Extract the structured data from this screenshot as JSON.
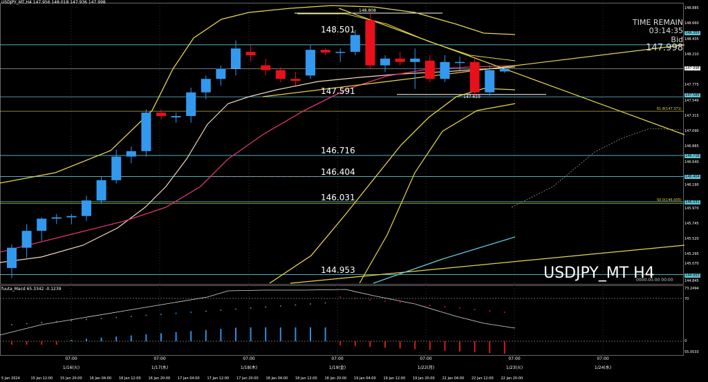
{
  "header": {
    "symbol": "USDJPY_MT,H4",
    "ohlc": "147.956 148.018 147.936 147.998"
  },
  "info": {
    "time_remain_label": "TIME REMAIN",
    "time_remain_value": "03:14:35",
    "bid_label": "Bid",
    "bid_value": "147.998"
  },
  "watermark": "USDJPY_MT H4",
  "level_labels": {
    "top_line": "148.808",
    "l1": "148.501",
    "l2": "147.591",
    "l3": "147.619",
    "l4": "146.716",
    "l5": "146.404",
    "l6": "146.031",
    "l7": "144.953"
  },
  "fib_labels": {
    "f618": "61.8(147.371)",
    "f500": "50.0(146.005)"
  },
  "price_axis": [
    "148.885",
    "148.660",
    "148.435",
    "148.210",
    "147.775",
    "147.540",
    "147.315",
    "147.090",
    "146.865",
    "146.640",
    "146.415",
    "146.190",
    "145.970",
    "145.745",
    "145.520",
    "145.295",
    "145.070",
    "144.845"
  ],
  "price_tags": {
    "p148355": "148.355",
    "current": "147.998",
    "p147585": "147.585",
    "p146716": "146.716",
    "p146404": "146.404",
    "p146031": "146.031",
    "p144953": "144.953"
  },
  "macd": {
    "header": "fuuta_Macd 65.3342 -0.1239",
    "axis": [
      "73.2494",
      "70",
      "0",
      "55.0533"
    ],
    "zero_readout": "0000.00.00 00:00"
  },
  "time_ticks": [
    "07:00",
    "07:00",
    "07:00",
    "07:00",
    "07:00",
    "07:00",
    "07:00",
    "07:00"
  ],
  "date_ticks": [
    "1/16(火)",
    "1/17(水)",
    "1/18(木)",
    "1/19(金)",
    "1/22(月)",
    "1/23(火)",
    "1/24(水)"
  ],
  "x_dates": [
    "5 Jan 2024",
    "15 Jan 12:00",
    "15 Jan 20:00",
    "16 Jan 04:00",
    "16 Jan 12:00",
    "16 Jan 20:00",
    "17 Jan 04:00",
    "17 Jan 12:00",
    "17 Jan 20:00",
    "18 Jan 04:00",
    "18 Jan 12:00",
    "18 Jan 20:00",
    "19 Jan 04:00",
    "19 Jan 12:00",
    "19 Jan 20:00",
    "22 Jan 04:00",
    "22 Jan 12:00",
    "22 Jan 20:00"
  ],
  "candles": [
    [
      145.05,
      145.4,
      144.9,
      145.35
    ],
    [
      145.35,
      145.7,
      145.2,
      145.6
    ],
    [
      145.6,
      145.8,
      145.45,
      145.78
    ],
    [
      145.78,
      145.85,
      145.7,
      145.8
    ],
    [
      145.8,
      145.85,
      145.7,
      145.82
    ],
    [
      145.82,
      146.12,
      145.75,
      146.05
    ],
    [
      146.05,
      146.4,
      146.0,
      146.35
    ],
    [
      146.35,
      146.8,
      146.3,
      146.7
    ],
    [
      146.7,
      146.85,
      146.6,
      146.78
    ],
    [
      146.78,
      147.4,
      146.7,
      147.35
    ],
    [
      147.35,
      147.4,
      147.25,
      147.3
    ],
    [
      147.28,
      147.35,
      147.2,
      147.3
    ],
    [
      147.3,
      147.72,
      147.2,
      147.65
    ],
    [
      147.65,
      147.9,
      147.55,
      147.85
    ],
    [
      147.85,
      148.05,
      147.75,
      148.0
    ],
    [
      148.0,
      148.42,
      147.9,
      148.3
    ],
    [
      148.25,
      148.35,
      148.1,
      148.2
    ],
    [
      148.05,
      148.15,
      147.9,
      147.98
    ],
    [
      147.98,
      148.02,
      147.8,
      147.85
    ],
    [
      147.85,
      147.95,
      147.75,
      147.82
    ],
    [
      147.9,
      148.35,
      147.85,
      148.28
    ],
    [
      148.28,
      148.3,
      148.2,
      148.24
    ],
    [
      148.24,
      148.3,
      148.1,
      148.25
    ],
    [
      148.25,
      148.58,
      148.2,
      148.5
    ],
    [
      148.72,
      148.82,
      148.0,
      148.05
    ],
    [
      148.05,
      148.2,
      147.95,
      148.15
    ],
    [
      148.15,
      148.25,
      148.05,
      148.1
    ],
    [
      148.1,
      148.3,
      147.7,
      148.15
    ],
    [
      148.12,
      148.2,
      147.8,
      147.85
    ],
    [
      147.85,
      148.2,
      147.8,
      148.1
    ],
    [
      148.1,
      148.18,
      147.98,
      148.1
    ],
    [
      148.1,
      148.15,
      147.6,
      147.65
    ],
    [
      147.65,
      148.05,
      147.6,
      147.98
    ],
    [
      147.96,
      148.02,
      147.94,
      148.0
    ]
  ],
  "colors": {
    "up": "#3399ee",
    "down": "#e8101a",
    "yellow": "#e8d84a",
    "cyan": "#5ec8d8",
    "white": "#ffffff",
    "pink": "#e0347a",
    "macd_hist_up": "#2f8fe0",
    "macd_hist_down": "#d81a1a"
  }
}
